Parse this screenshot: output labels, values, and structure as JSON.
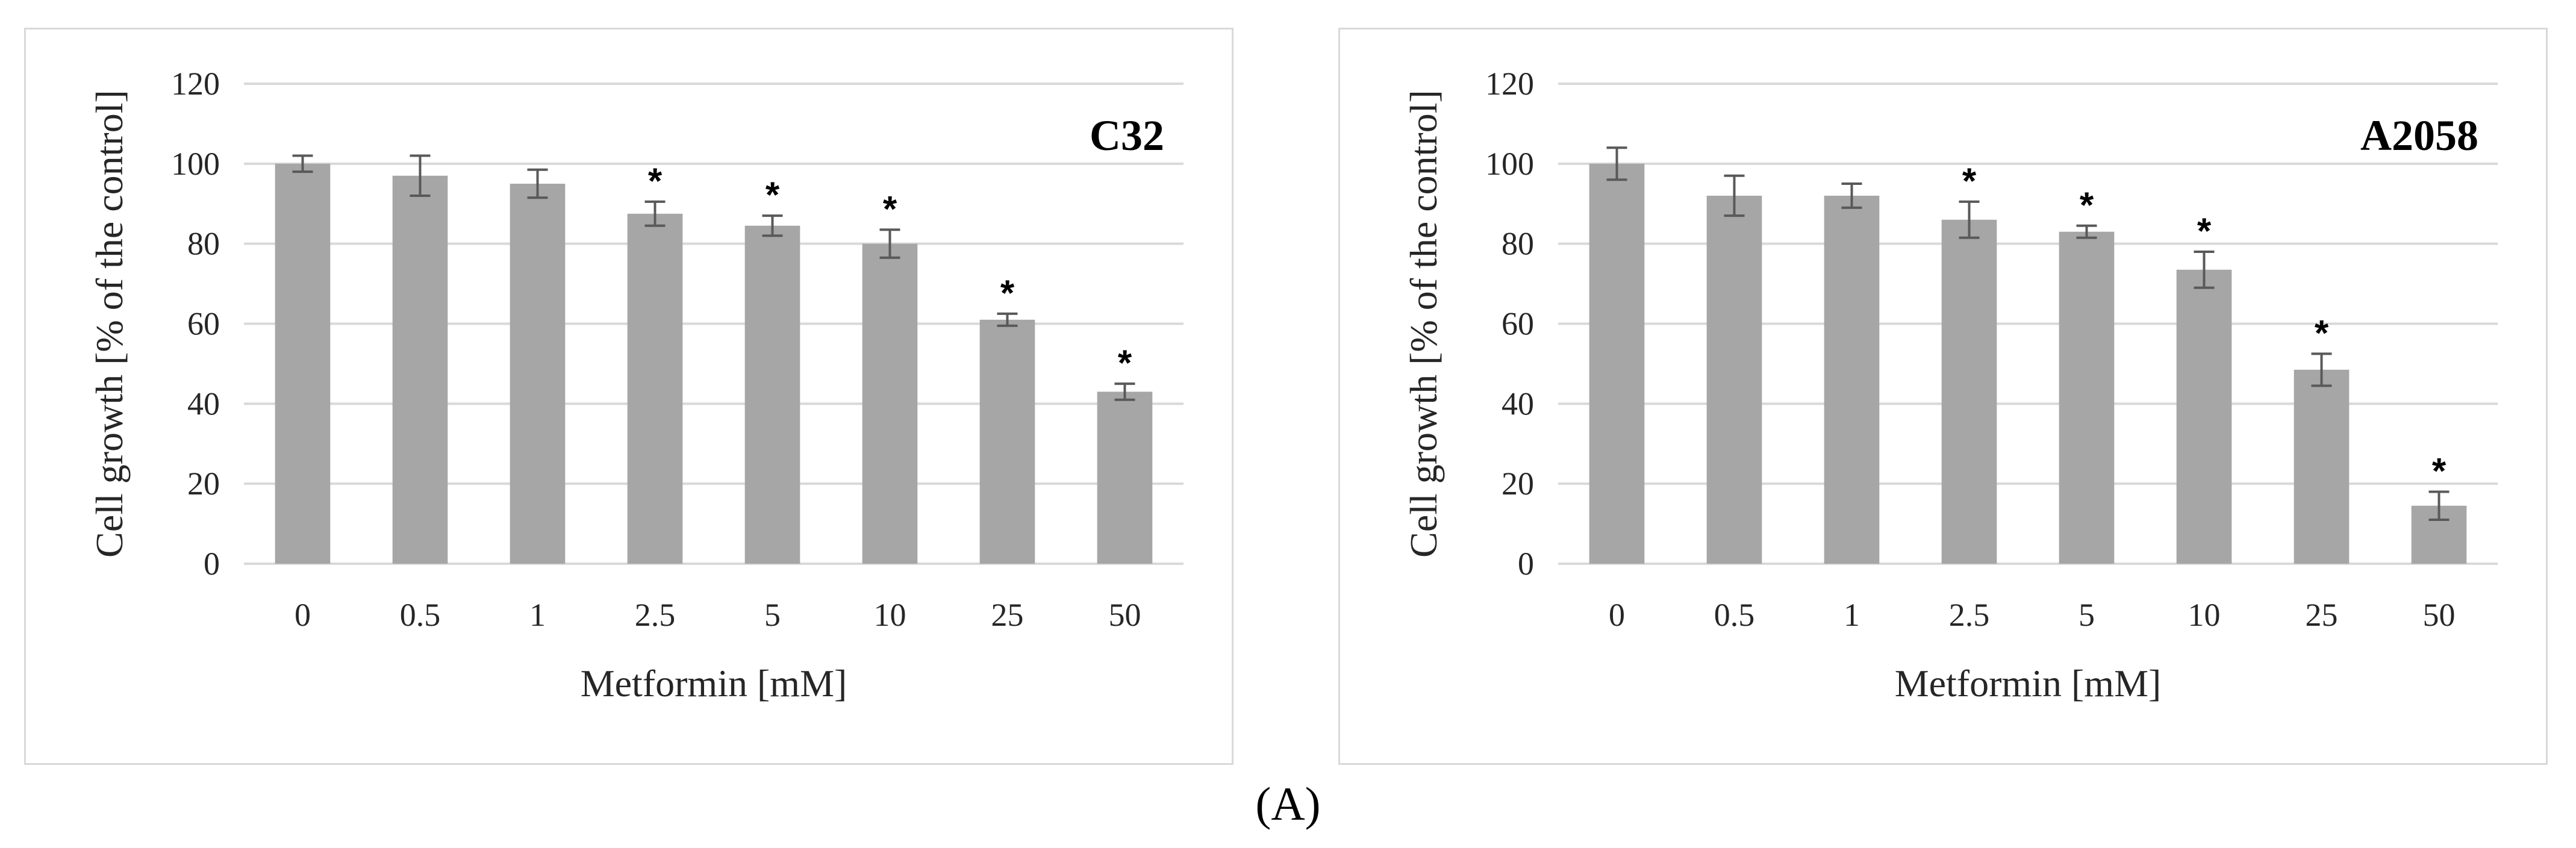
{
  "figure_label": "(A)",
  "colors": {
    "bar": "#a6a6a6",
    "grid": "#d9d9d9",
    "error_bar": "#595959",
    "border": "#d9d9d9"
  },
  "chart_data": [
    {
      "type": "bar",
      "title": "C32",
      "xlabel": "Metformin [mM]",
      "ylabel": "Cell growth [% of the control]",
      "categories": [
        "0",
        "0.5",
        "1",
        "2.5",
        "5",
        "10",
        "25",
        "50"
      ],
      "values": [
        100,
        97,
        95,
        87.5,
        84.5,
        80,
        61,
        43
      ],
      "errors": [
        2,
        5,
        3.5,
        3,
        2.5,
        3.5,
        1.5,
        2
      ],
      "significant": [
        false,
        false,
        false,
        true,
        true,
        true,
        true,
        true
      ],
      "significance_marker": "*",
      "ylim": [
        0,
        120
      ],
      "yticks": [
        0,
        20,
        40,
        60,
        80,
        100,
        120
      ],
      "grid": true
    },
    {
      "type": "bar",
      "title": "A2058",
      "xlabel": "Metformin [mM]",
      "ylabel": "Cell growth [% of the control]",
      "categories": [
        "0",
        "0.5",
        "1",
        "2.5",
        "5",
        "10",
        "25",
        "50"
      ],
      "values": [
        100,
        92,
        92,
        86,
        83,
        73.5,
        48.5,
        14.5
      ],
      "errors": [
        4,
        5,
        3,
        4.5,
        1.5,
        4.5,
        4,
        3.5
      ],
      "significant": [
        false,
        false,
        false,
        true,
        true,
        true,
        true,
        true
      ],
      "significance_marker": "*",
      "ylim": [
        0,
        120
      ],
      "yticks": [
        0,
        20,
        40,
        60,
        80,
        100,
        120
      ],
      "grid": true
    }
  ]
}
